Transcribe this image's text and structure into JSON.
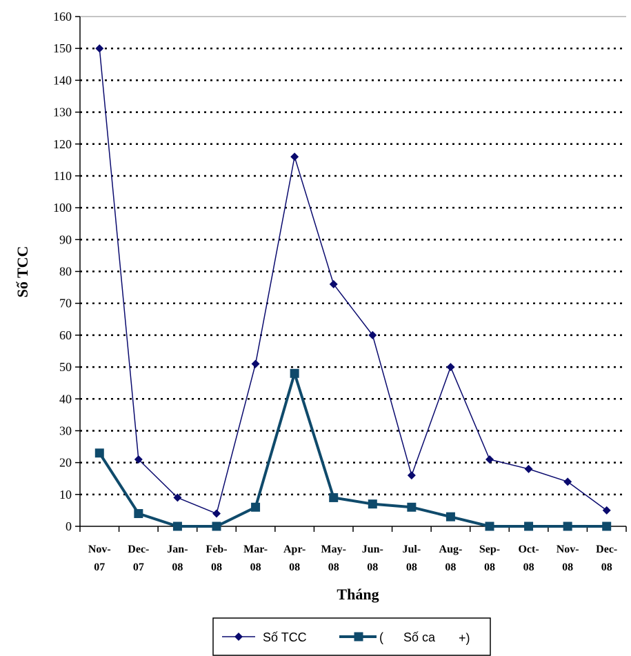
{
  "chart_data": {
    "type": "line",
    "categories": [
      [
        "Nov-",
        "07"
      ],
      [
        "Dec-",
        "07"
      ],
      [
        "Jan-",
        "08"
      ],
      [
        "Feb-",
        "08"
      ],
      [
        "Mar-",
        "08"
      ],
      [
        "Apr-",
        "08"
      ],
      [
        "May-",
        "08"
      ],
      [
        "Jun-",
        "08"
      ],
      [
        "Jul-",
        "08"
      ],
      [
        "Aug-",
        "08"
      ],
      [
        "Sep-",
        "08"
      ],
      [
        "Oct-",
        "08"
      ],
      [
        "Nov-",
        "08"
      ],
      [
        "Dec-",
        "08"
      ]
    ],
    "series": [
      {
        "name": "Số TCC",
        "color": "#0a0a6e",
        "marker": "diamond",
        "values": [
          150,
          21,
          9,
          4,
          51,
          116,
          76,
          60,
          16,
          50,
          21,
          18,
          14,
          5
        ]
      },
      {
        "name": "Số ca",
        "color": "#0f4a6b",
        "marker": "square",
        "values": [
          23,
          4,
          0,
          0,
          6,
          48,
          9,
          7,
          6,
          3,
          0,
          0,
          0,
          0
        ]
      }
    ],
    "xlabel": "Tháng",
    "ylabel": "Số TCC",
    "ylim": [
      0,
      160
    ],
    "ytick_step": 10,
    "grid": "horizontal-dotted",
    "legend_position": "bottom",
    "legend_extra_glyphs": [
      "(",
      "+)"
    ]
  }
}
